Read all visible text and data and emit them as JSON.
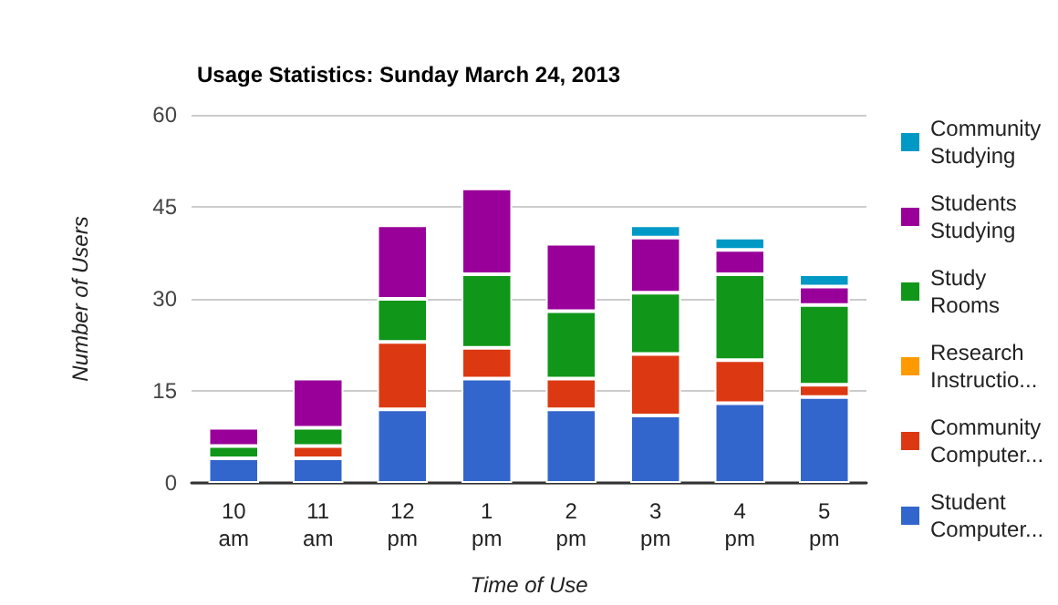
{
  "chart_data": {
    "type": "bar",
    "title": "Usage Statistics: Sunday March 24, 2013",
    "xlabel": "Time of Use",
    "ylabel": "Number of Users",
    "categories": [
      "10 am",
      "11 am",
      "12 pm",
      "1 pm",
      "2 pm",
      "3 pm",
      "4 pm",
      "5 pm"
    ],
    "stacked": true,
    "ylim": [
      0,
      60
    ],
    "yticks": [
      0,
      15,
      30,
      45,
      60
    ],
    "grid": "y",
    "legend": "right",
    "series": [
      {
        "name": "Student Computer...",
        "color": "#3366cc",
        "values": [
          4,
          4,
          12,
          17,
          12,
          11,
          13,
          14
        ]
      },
      {
        "name": "Community Computer...",
        "color": "#dc3912",
        "values": [
          0,
          2,
          11,
          5,
          5,
          10,
          7,
          2
        ]
      },
      {
        "name": "Research Instructio...",
        "color": "#ff9900",
        "values": [
          0,
          0,
          0,
          0,
          0,
          0,
          0,
          0
        ]
      },
      {
        "name": "Study Rooms",
        "color": "#109618",
        "values": [
          2,
          3,
          7,
          12,
          11,
          10,
          14,
          13
        ]
      },
      {
        "name": "Students Studying",
        "color": "#990099",
        "values": [
          3,
          8,
          12,
          14,
          11,
          9,
          4,
          3
        ]
      },
      {
        "name": "Community Studying",
        "color": "#0099c6",
        "values": [
          0,
          0,
          0,
          0,
          0,
          2,
          2,
          2
        ]
      }
    ]
  }
}
